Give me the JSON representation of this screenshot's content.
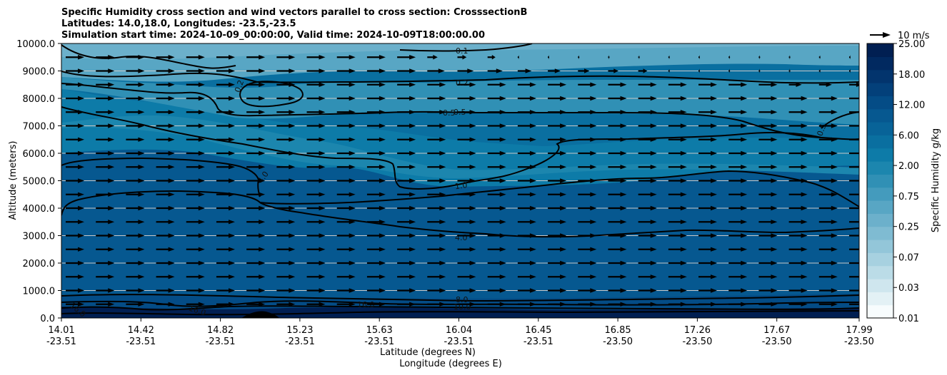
{
  "chart_data": {
    "type": "contour",
    "title_lines": [
      "Specific Humidity cross section and wind vectors parallel to cross section: CrosssectionB",
      "Latitudes: 14.0,18.0, Longitudes: -23.5,-23.5",
      "Simulation start time: 2024-10-09_00:00:00, Valid time: 2024-10-09T18:00:00.00"
    ],
    "xlabel_lat": "Latitude (degrees N)",
    "xlabel_lon": "Longitude (degrees E)",
    "ylabel": "Altitude (meters)",
    "ylim": [
      0,
      10000
    ],
    "x_ticks": [
      {
        "lat": "14.01",
        "lon": "-23.51"
      },
      {
        "lat": "14.42",
        "lon": "-23.51"
      },
      {
        "lat": "14.82",
        "lon": "-23.51"
      },
      {
        "lat": "15.23",
        "lon": "-23.51"
      },
      {
        "lat": "15.63",
        "lon": "-23.51"
      },
      {
        "lat": "16.04",
        "lon": "-23.51"
      },
      {
        "lat": "16.45",
        "lon": "-23.51"
      },
      {
        "lat": "16.85",
        "lon": "-23.50"
      },
      {
        "lat": "17.26",
        "lon": "-23.50"
      },
      {
        "lat": "17.67",
        "lon": "-23.50"
      },
      {
        "lat": "17.99",
        "lon": "-23.50"
      }
    ],
    "y_ticks": [
      "0.0",
      "1000.0",
      "2000.0",
      "3000.0",
      "4000.0",
      "5000.0",
      "6000.0",
      "7000.0",
      "8000.0",
      "9000.0",
      "10000.0"
    ],
    "grid": "horizontal",
    "colorbar": {
      "label": "Specific Humidity g/kg",
      "tick_labels": [
        "0.01",
        "0.03",
        "0.07",
        "0.25",
        "0.75",
        "2.00",
        "6.00",
        "12.00",
        "18.00",
        "25.00"
      ],
      "colors": [
        "#f7fcfd",
        "#e3f1f5",
        "#cfe6ee",
        "#bbdce7",
        "#a7d1e0",
        "#93c6d9",
        "#7fbbd2",
        "#6cb0cb",
        "#58a6c4",
        "#449bbd",
        "#3090b5",
        "#1c86ae",
        "#0d7ba8",
        "#0a6fa0",
        "#086398",
        "#065890",
        "#044c86",
        "#03407a",
        "#02346d",
        "#012960",
        "#011f52"
      ]
    },
    "contour_labels": [
      "0.1",
      "0.2",
      "0.2",
      "0.5",
      "0.5",
      "0.5",
      "1.0",
      "4.0",
      "4.0",
      "8.0",
      "10.0",
      "16.0",
      "16.0",
      "16.0"
    ],
    "wind_key": {
      "label": "10 m/s"
    },
    "wind": {
      "direction": "along cross section, toward increasing latitude",
      "column_count": 27,
      "levels_m": [
        500,
        1000,
        1500,
        2000,
        2500,
        3000,
        3500,
        4000,
        4500,
        5000,
        5500,
        6000,
        6500,
        7000,
        7500,
        8000,
        8500,
        9000,
        9500
      ]
    }
  }
}
